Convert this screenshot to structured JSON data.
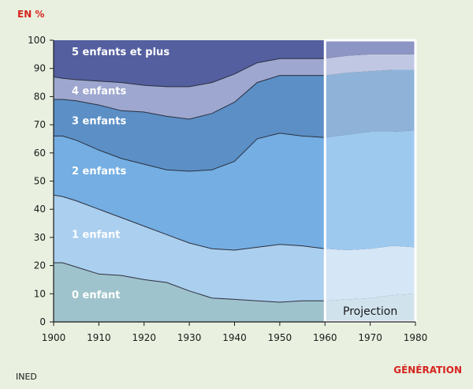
{
  "chart_data": {
    "type": "area",
    "stacked": true,
    "ylabel": "EN %",
    "xlabel": "GÉNÉRATION",
    "source": "INED",
    "annotation": "Projection",
    "projection_start": 1960,
    "xlim": [
      1900,
      1980
    ],
    "ylim": [
      0,
      100
    ],
    "x_ticks": [
      1900,
      1910,
      1920,
      1930,
      1940,
      1950,
      1960,
      1970,
      1980
    ],
    "y_ticks": [
      0,
      10,
      20,
      30,
      40,
      50,
      60,
      70,
      80,
      90,
      100
    ],
    "x": [
      1900,
      1902,
      1905,
      1910,
      1915,
      1920,
      1925,
      1930,
      1935,
      1940,
      1945,
      1950,
      1955,
      1960,
      1965,
      1970,
      1975,
      1980
    ],
    "boundaries": [
      {
        "upper_of": "0 enfant",
        "values": [
          21,
          21,
          19.5,
          17,
          16.5,
          15,
          14,
          11,
          8.5,
          8,
          7.5,
          7,
          7.5,
          7.5,
          8,
          8.5,
          9.5,
          10
        ]
      },
      {
        "upper_of": "1 enfant",
        "values": [
          45,
          44.5,
          43,
          40,
          37,
          34,
          31,
          28,
          26,
          25.5,
          26.5,
          27.5,
          27,
          26,
          25.5,
          26,
          27,
          26.5
        ]
      },
      {
        "upper_of": "2 enfants",
        "values": [
          66,
          66,
          64.5,
          61,
          58,
          56,
          54,
          53.5,
          54,
          57,
          65,
          67,
          66,
          65.5,
          66.5,
          67.5,
          67.5,
          68
        ]
      },
      {
        "upper_of": "3 enfants",
        "values": [
          79,
          79,
          78.5,
          77,
          75,
          74.5,
          73,
          72,
          74,
          78,
          85,
          87.5,
          87.5,
          87.5,
          88.5,
          89,
          89.5,
          89.5
        ]
      },
      {
        "upper_of": "4 enfants",
        "values": [
          87,
          86.5,
          86,
          85.5,
          85,
          84,
          83.5,
          83.5,
          85,
          88,
          92,
          93.5,
          93.5,
          93.5,
          94.5,
          95,
          95,
          95
        ]
      },
      {
        "upper_of": "5 enfants et plus",
        "values": [
          100,
          100,
          100,
          100,
          100,
          100,
          100,
          100,
          100,
          100,
          100,
          100,
          100,
          100,
          100,
          100,
          100,
          100
        ]
      }
    ],
    "series": [
      {
        "name": "0 enfant",
        "color": "#9fc3cc"
      },
      {
        "name": "1 enfant",
        "color": "#abcfee"
      },
      {
        "name": "2 enfants",
        "color": "#74aee2"
      },
      {
        "name": "3 enfants",
        "color": "#5b8fc6"
      },
      {
        "name": "4 enfants",
        "color": "#9da7cf"
      },
      {
        "name": "5 enfants et plus",
        "color": "#545fa0"
      }
    ],
    "projection_series_colors": [
      "#d0e2ec",
      "#d5e6f6",
      "#9ec9ef",
      "#8fb3d8",
      "#c0c7e2",
      "#8d95c4"
    ]
  }
}
